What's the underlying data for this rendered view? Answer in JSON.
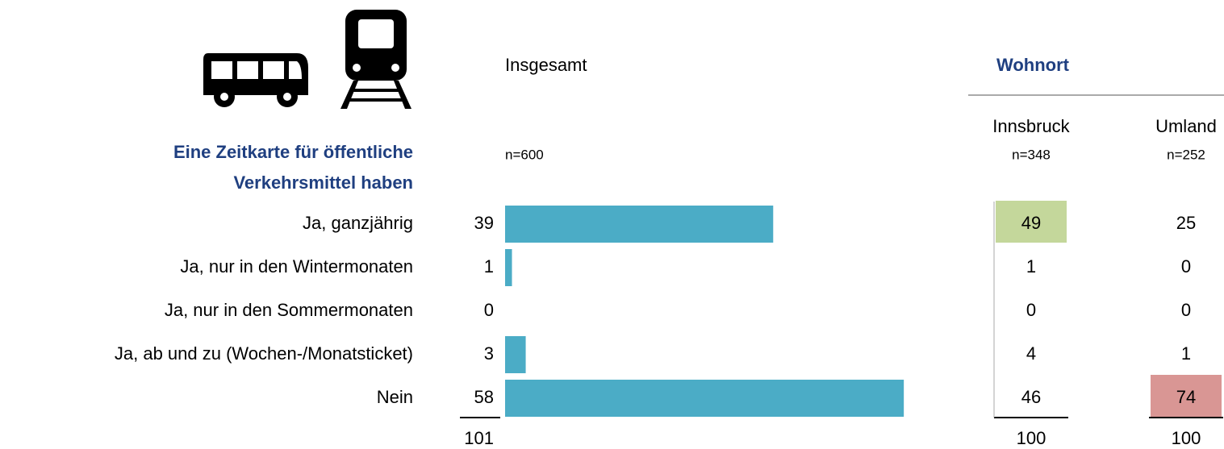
{
  "chart_data": {
    "type": "bar",
    "title": [
      "Eine Zeitkarte für öffentliche",
      "Verkehrsmittel haben"
    ],
    "n_label": "n=600",
    "categories": [
      "Ja, ganzjährig",
      "Ja, nur in den Wintermonaten",
      "Ja, nur in den Sommermonaten",
      "Ja, ab und zu (Wochen-/Monatsticket)",
      "Nein"
    ],
    "series": [
      {
        "name": "Insgesamt",
        "color": "#4bacc6",
        "values": [
          39,
          1,
          0,
          3,
          58
        ]
      }
    ],
    "total": 101
  },
  "table": {
    "group": "Wohnort",
    "columns": [
      {
        "name": "Innsbruck",
        "n_label": "n=348",
        "values": [
          49,
          1,
          0,
          4,
          46
        ],
        "total": 100,
        "cell_colors": [
          "#c4d79b",
          null,
          null,
          null,
          null
        ]
      },
      {
        "name": "Umland",
        "n_label": "n=252",
        "values": [
          25,
          0,
          0,
          1,
          74
        ],
        "total": 100,
        "cell_colors": [
          null,
          null,
          null,
          null,
          "#d99694"
        ]
      }
    ]
  }
}
